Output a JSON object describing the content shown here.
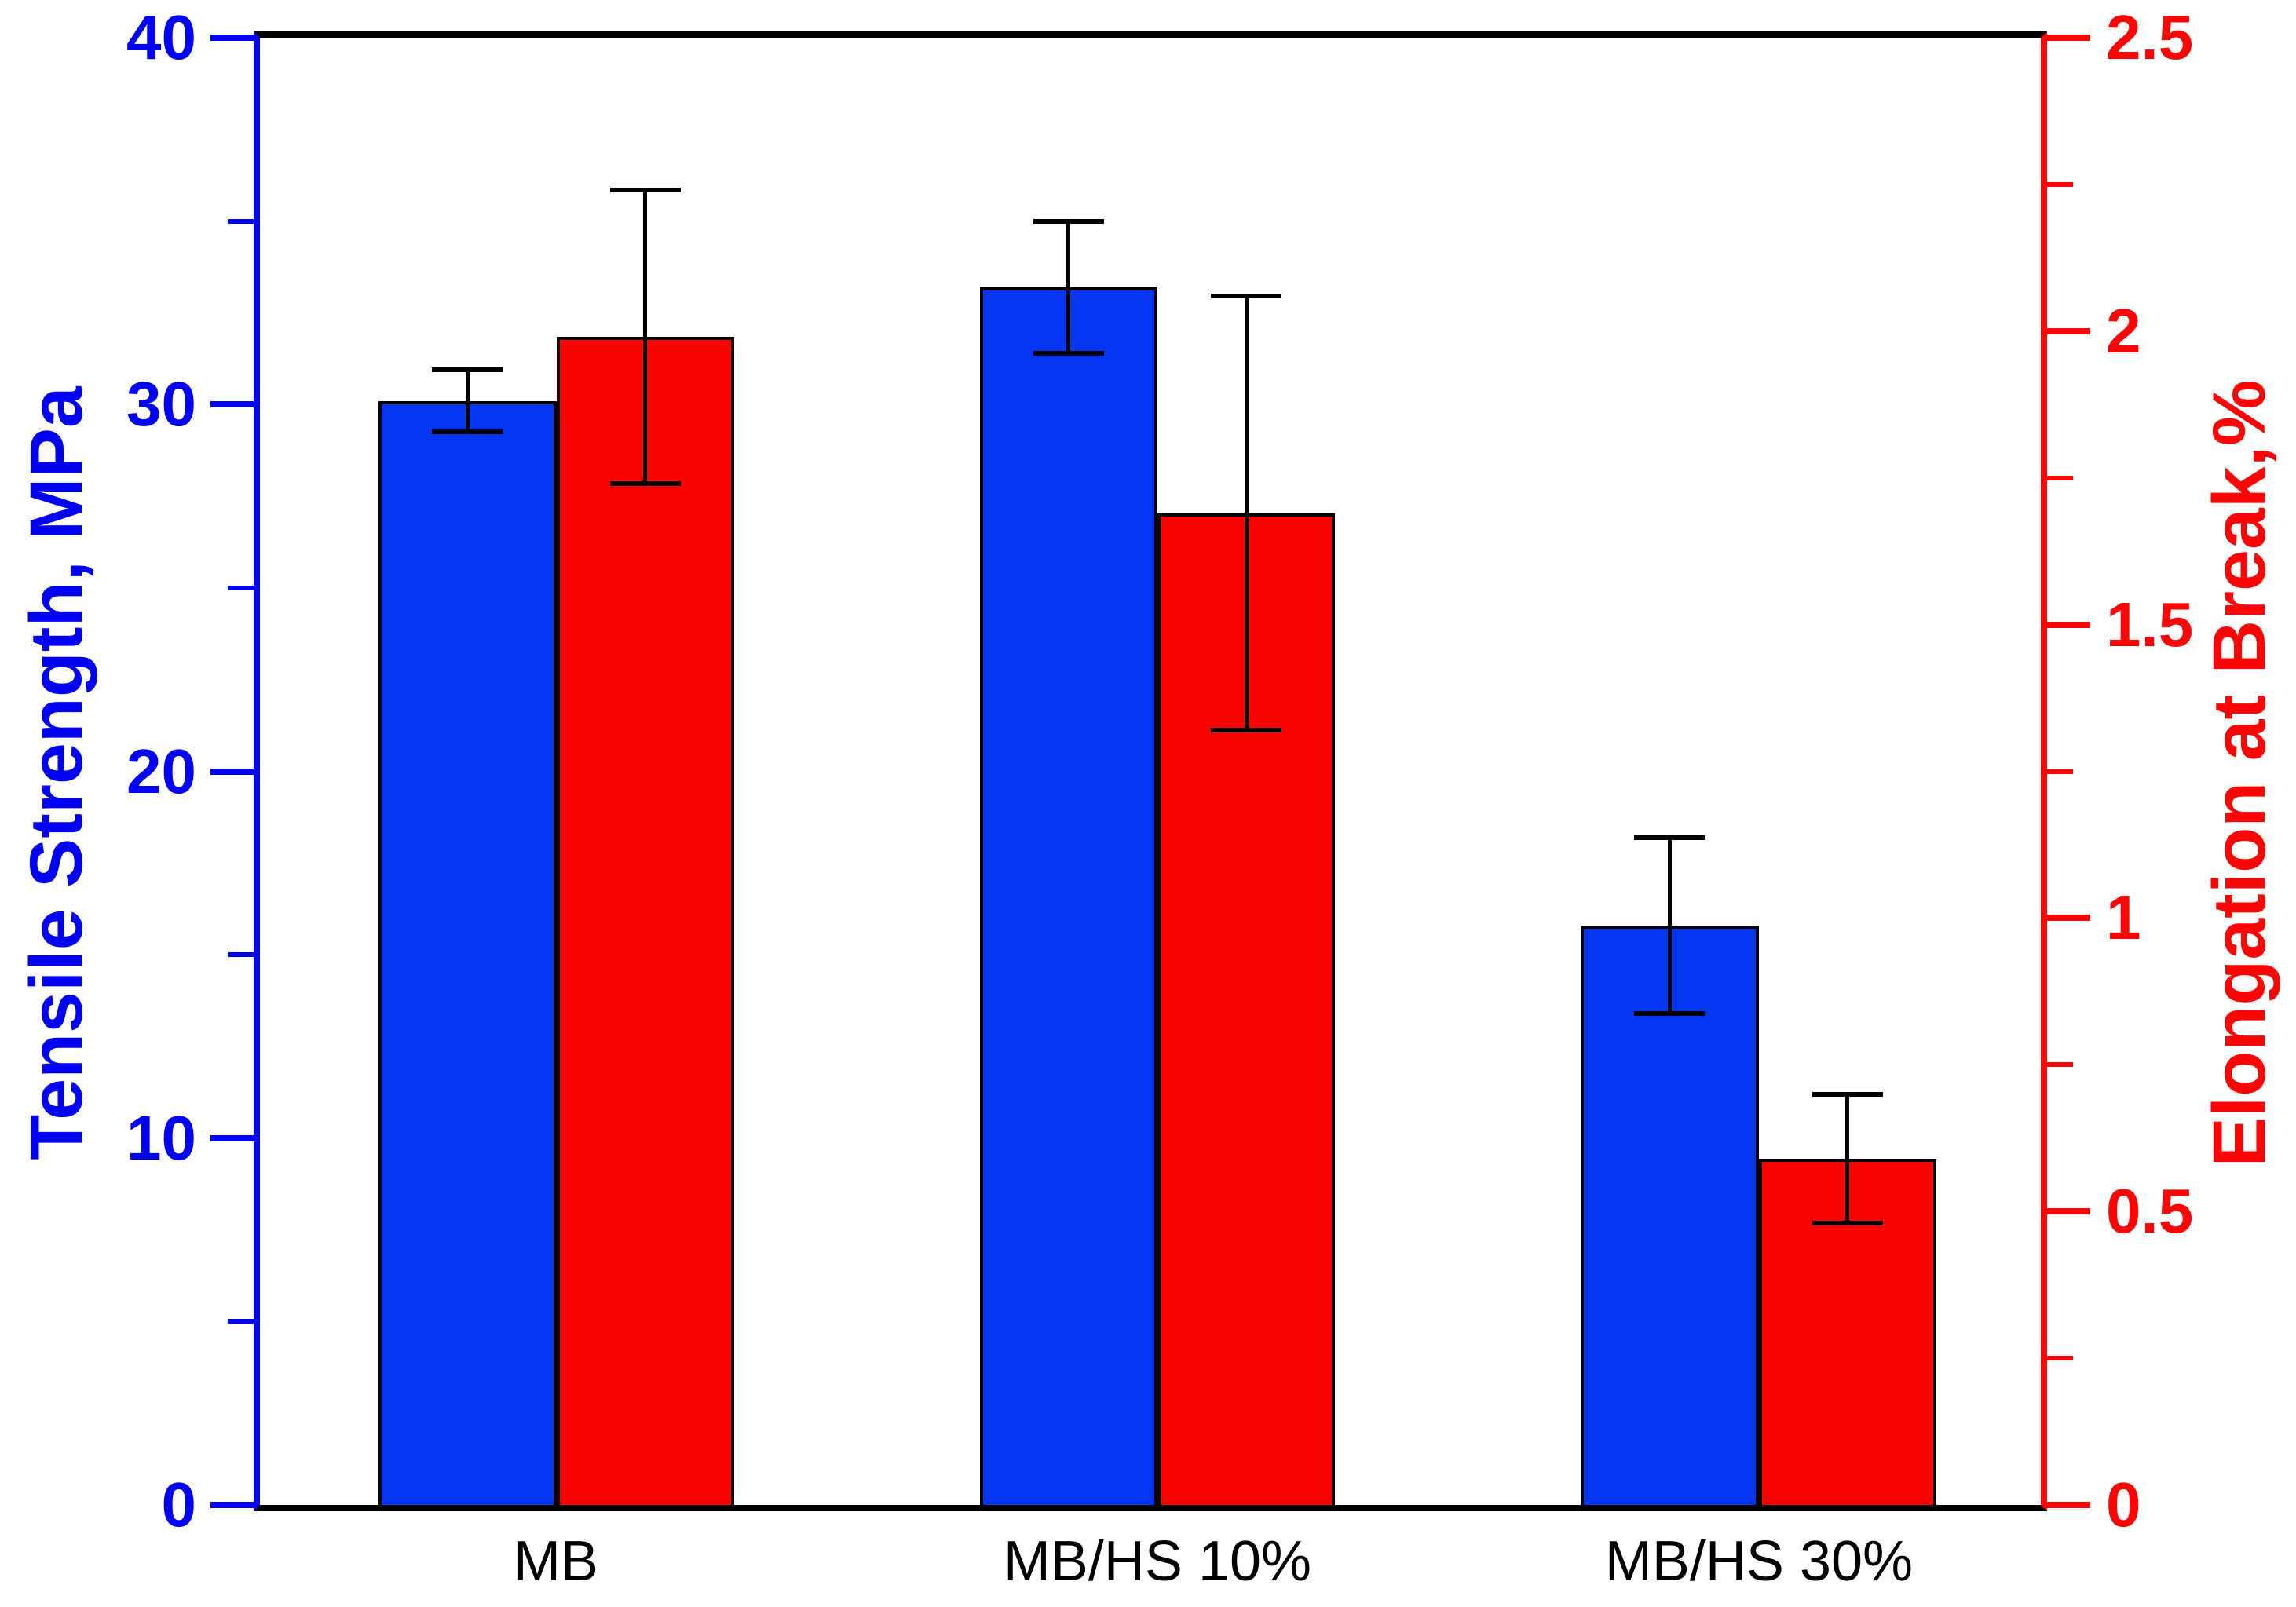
{
  "chart_data": {
    "type": "bar",
    "title": "",
    "categories": [
      "MB",
      "MB/HS 10%",
      "MB/HS 30%"
    ],
    "series": [
      {
        "name": "Tensile Strength",
        "axis": "left",
        "color": "#0636f2",
        "values": [
          30.1,
          33.2,
          15.8
        ],
        "errors": [
          0.85,
          1.8,
          2.4
        ]
      },
      {
        "name": "Elongation at Break",
        "axis": "right",
        "color": "#f90400",
        "values": [
          1.99,
          1.69,
          0.59
        ],
        "errors": [
          0.25,
          0.37,
          0.11
        ]
      }
    ],
    "left_axis": {
      "label": "Tensile Strength, MPa",
      "color": "#0202f2",
      "min": 0,
      "max": 40,
      "major_ticks": [
        "0",
        "10",
        "20",
        "30",
        "40"
      ],
      "minor_ticks": [
        5,
        15,
        25,
        35
      ]
    },
    "right_axis": {
      "label": "Elongation at Break,%",
      "color": "#fb0606",
      "min": 0,
      "max": 2.5,
      "major_ticks": [
        "0",
        "0.5",
        "1",
        "1.5",
        "2",
        "2.5"
      ],
      "minor_ticks": [
        0.25,
        0.75,
        1.25,
        1.75,
        2.25
      ]
    },
    "legend": "none",
    "grid": false,
    "error_bar_style": "caps-both-ends",
    "bar_outline_color": "#000000"
  }
}
